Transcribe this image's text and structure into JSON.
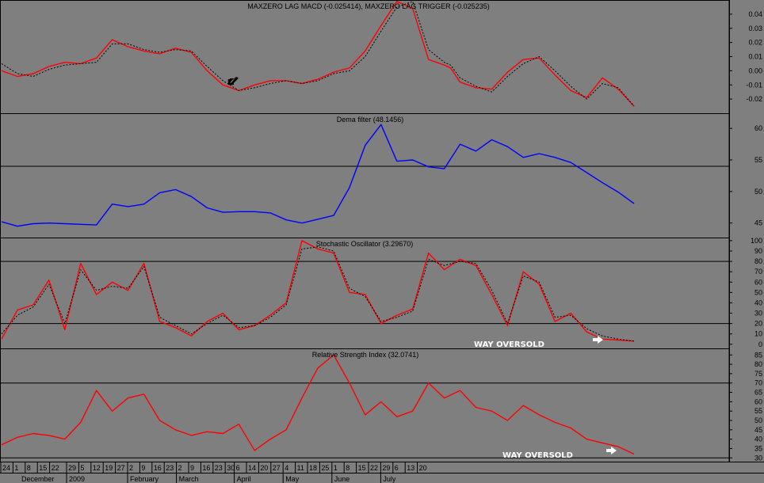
{
  "chart_data": [
    {
      "type": "line",
      "title": "MAXZERO LAG MACD (-0.025414), MAXZERO LAG TRIGGER (-0.025235)",
      "ylim": [
        -0.03,
        0.05
      ],
      "yticks": [
        0.04,
        0.03,
        0.02,
        0.01,
        0.0,
        -0.01,
        -0.02
      ],
      "ytick_labels": [
        "0.04",
        "0.03",
        "0.02",
        "0.01",
        "0.00",
        "-0.01",
        "-0.02"
      ],
      "x": [
        0,
        5,
        10,
        15,
        20,
        25,
        30,
        35,
        40,
        45,
        50,
        55,
        60,
        65,
        70,
        75,
        80,
        85,
        90,
        95,
        100,
        105,
        110,
        115,
        120,
        125,
        130,
        135,
        140,
        142,
        145,
        150,
        155,
        160,
        165,
        170,
        175,
        180,
        185,
        190,
        195,
        200
      ],
      "series": [
        {
          "name": "MAXZERO LAG MACD",
          "color": "#ff0000",
          "values": [
            0.0,
            -0.004,
            -0.002,
            0.003,
            0.006,
            0.005,
            0.009,
            0.022,
            0.017,
            0.014,
            0.012,
            0.016,
            0.013,
            0.0,
            -0.01,
            -0.014,
            -0.01,
            -0.007,
            -0.007,
            -0.009,
            -0.006,
            -0.001,
            0.002,
            0.014,
            0.032,
            0.049,
            0.044,
            0.008,
            0.004,
            0.002,
            -0.008,
            -0.012,
            -0.013,
            -0.001,
            0.008,
            0.009,
            -0.003,
            -0.014,
            -0.019,
            -0.005,
            -0.013,
            -0.025
          ]
        },
        {
          "name": "MAXZERO LAG TRIGGER",
          "color": "#000000",
          "values": [
            0.005,
            -0.002,
            -0.004,
            0.001,
            0.004,
            0.005,
            0.006,
            0.019,
            0.019,
            0.015,
            0.013,
            0.015,
            0.014,
            0.003,
            -0.007,
            -0.014,
            -0.012,
            -0.009,
            -0.007,
            -0.009,
            -0.007,
            -0.002,
            0.0,
            0.01,
            0.028,
            0.045,
            0.049,
            0.015,
            0.006,
            0.004,
            -0.005,
            -0.011,
            -0.015,
            -0.004,
            0.005,
            0.01,
            0.0,
            -0.011,
            -0.02,
            -0.009,
            -0.012,
            -0.025
          ]
        }
      ]
    },
    {
      "type": "line",
      "title": "Dema filter (48.1456)",
      "ylim": [
        42.7,
        62.4
      ],
      "yticks": [
        60,
        55,
        50,
        45
      ],
      "ytick_labels": [
        "60",
        "55",
        "50",
        "45"
      ],
      "hlines": [
        54
      ],
      "x": [
        0,
        5,
        10,
        15,
        20,
        25,
        30,
        35,
        40,
        45,
        50,
        55,
        60,
        65,
        70,
        75,
        80,
        85,
        90,
        95,
        100,
        105,
        110,
        115,
        120,
        125,
        130,
        135,
        140,
        145,
        150,
        155,
        160,
        165,
        170,
        175,
        180,
        185,
        190,
        195,
        200
      ],
      "series": [
        {
          "name": "Dema filter",
          "color": "#0000ff",
          "values": [
            45.2,
            44.5,
            44.9,
            45.0,
            44.9,
            44.8,
            44.7,
            48.0,
            47.6,
            48.0,
            49.8,
            50.3,
            49.2,
            47.4,
            46.7,
            46.8,
            46.8,
            46.6,
            45.5,
            45.0,
            45.6,
            46.2,
            50.6,
            57.3,
            60.6,
            54.8,
            55.0,
            53.9,
            53.6,
            57.5,
            56.4,
            58.2,
            57.1,
            55.4,
            56.0,
            55.4,
            54.6,
            53.0,
            51.4,
            49.9,
            48.1
          ]
        }
      ]
    },
    {
      "type": "line",
      "title": "Stochastic Oscillator (3.29670)",
      "ylim": [
        -4,
        103
      ],
      "yticks": [
        100,
        90,
        80,
        70,
        60,
        50,
        40,
        30,
        20,
        10,
        0
      ],
      "ytick_labels": [
        "100",
        "90",
        "80",
        "70",
        "60",
        "50",
        "40",
        "30",
        "20",
        "10",
        "0"
      ],
      "hlines": [
        80,
        20
      ],
      "x": [
        0,
        5,
        10,
        15,
        20,
        25,
        30,
        35,
        40,
        45,
        50,
        55,
        60,
        65,
        70,
        75,
        80,
        85,
        90,
        95,
        100,
        105,
        110,
        115,
        120,
        125,
        130,
        135,
        140,
        145,
        150,
        155,
        160,
        165,
        170,
        175,
        180,
        185,
        190,
        195,
        200
      ],
      "series": [
        {
          "name": "%K",
          "color": "#ff0000",
          "values": [
            5,
            33,
            38,
            62,
            14,
            78,
            48,
            60,
            52,
            78,
            22,
            16,
            8,
            22,
            30,
            14,
            18,
            28,
            40,
            100,
            92,
            88,
            50,
            48,
            20,
            28,
            34,
            88,
            72,
            82,
            76,
            48,
            18,
            70,
            58,
            22,
            30,
            12,
            5,
            4,
            3
          ]
        },
        {
          "name": "%D",
          "color": "#000000",
          "values": [
            10,
            28,
            36,
            58,
            20,
            72,
            52,
            56,
            54,
            75,
            26,
            18,
            10,
            20,
            28,
            16,
            18,
            26,
            38,
            92,
            94,
            90,
            54,
            46,
            22,
            26,
            32,
            82,
            76,
            80,
            78,
            52,
            20,
            66,
            60,
            26,
            28,
            15,
            8,
            5,
            3
          ]
        }
      ],
      "annotations": [
        "WAY OVERSOLD"
      ]
    },
    {
      "type": "line",
      "title": "Relative Strength Index (32.0741)",
      "ylim": [
        28,
        88.5
      ],
      "yticks": [
        85,
        80,
        75,
        70,
        65,
        60,
        55,
        50,
        45,
        40,
        35,
        30
      ],
      "ytick_labels": [
        "85",
        "80",
        "75",
        "70",
        "65",
        "60",
        "55",
        "50",
        "45",
        "40",
        "35",
        "30"
      ],
      "hlines": [
        70,
        30
      ],
      "x": [
        0,
        5,
        10,
        15,
        20,
        25,
        30,
        35,
        40,
        45,
        50,
        55,
        60,
        65,
        70,
        75,
        80,
        85,
        90,
        95,
        100,
        105,
        110,
        115,
        120,
        125,
        130,
        135,
        140,
        145,
        150,
        155,
        160,
        165,
        170,
        175,
        180,
        185,
        190,
        195,
        200
      ],
      "series": [
        {
          "name": "RSI",
          "color": "#ff0000",
          "values": [
            37,
            41,
            43,
            42,
            40,
            49,
            66,
            55,
            62,
            64,
            50,
            45,
            42,
            44,
            43,
            48,
            34,
            40,
            45,
            62,
            78,
            85,
            70,
            53,
            60,
            52,
            55,
            70,
            62,
            66,
            57,
            55,
            50,
            58,
            53,
            49,
            46,
            40,
            38,
            36,
            32
          ]
        }
      ],
      "annotations": [
        "WAY OVERSOLD"
      ]
    }
  ],
  "x_axis": {
    "day_labels": [
      "24",
      "1",
      "8",
      "15",
      "22",
      "29",
      "5",
      "12",
      "19",
      "27",
      "2",
      "9",
      "16",
      "23",
      "2",
      "9",
      "16",
      "23",
      "30",
      "6",
      "14",
      "20",
      "27",
      "4",
      "11",
      "18",
      "25",
      "1",
      "8",
      "15",
      "22",
      "29",
      "6",
      "13",
      "20"
    ],
    "month_labels": [
      "December",
      "2009",
      "February",
      "March",
      "April",
      "May",
      "June",
      "July"
    ]
  }
}
